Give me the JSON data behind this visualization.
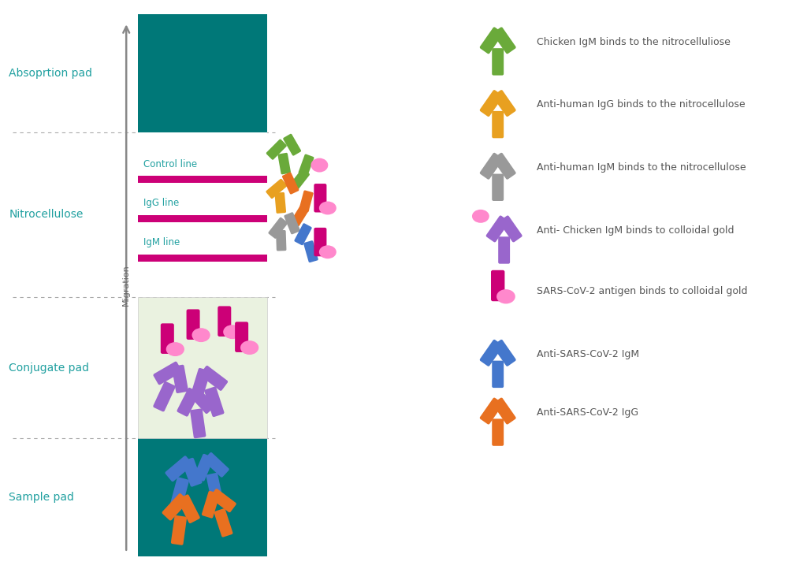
{
  "bg_color": "#ffffff",
  "teal": "#007878",
  "magenta": "#CC0077",
  "pink_bright": "#FF88CC",
  "green_ab": "#6aaa3a",
  "yellow_ab": "#E8A020",
  "gray_ab": "#999999",
  "purple_ab": "#9966CC",
  "blue_ab": "#4477CC",
  "orange_ab": "#E87020",
  "light_green_bg": "#eaf2e0",
  "pad_label_color": "#20a0a0",
  "migration_label": "Migration",
  "legend_labels": [
    "Chicken IgM binds to the nitrocelluliose",
    "Anti-human IgG binds to the nitrocellulose",
    "Anti-human IgM binds to the nitrocellulose",
    "Anti- Chicken IgM binds to colloidal gold",
    "SARS-CoV-2 antigen binds to colloidal gold",
    "Anti-SARS-CoV-2 IgM",
    "Anti-SARS-CoV-2 IgG"
  ]
}
